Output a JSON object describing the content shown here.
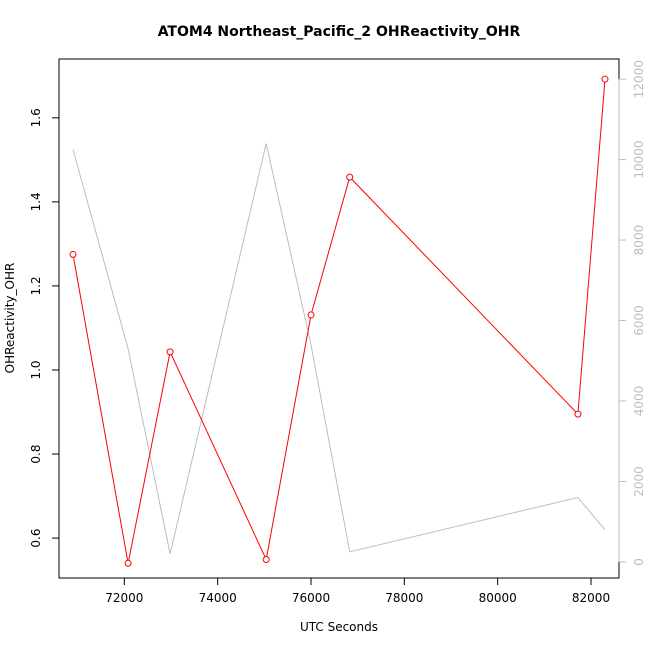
{
  "chart_data": {
    "type": "line",
    "title": "ATOM4 Northeast_Pacific_2 OHReactivity_OHR",
    "xlabel": "UTC Seconds",
    "ylabel": "OHReactivity_OHR",
    "xlim": [
      70600,
      82600
    ],
    "ylim": [
      0.505,
      1.74
    ],
    "y2lim": [
      -400,
      12500
    ],
    "x_ticks": [
      72000,
      74000,
      76000,
      78000,
      80000,
      82000
    ],
    "y_ticks": [
      0.6,
      0.8,
      1.0,
      1.2,
      1.4,
      1.6
    ],
    "y_tick_labels": [
      "0.6",
      "0.8",
      "1.0",
      "1.2",
      "1.4",
      "1.6"
    ],
    "y2_ticks": [
      0,
      2000,
      4000,
      6000,
      8000,
      10000,
      12000
    ],
    "grid": false,
    "series": [
      {
        "axis": "left",
        "color": "#ff0000",
        "markers": "open-circle",
        "x": [
          70900,
          72080,
          72980,
          75040,
          76000,
          76830,
          81720,
          82300
        ],
        "y": [
          1.275,
          0.54,
          1.043,
          0.549,
          1.131,
          1.459,
          0.895,
          1.692
        ]
      },
      {
        "axis": "right",
        "color": "#bdbdbd",
        "markers": "none",
        "x": [
          70900,
          72080,
          72980,
          75040,
          76000,
          76830,
          81720,
          82300
        ],
        "y": [
          10250,
          5300,
          200,
          10400,
          5400,
          250,
          1600,
          800
        ]
      }
    ]
  }
}
